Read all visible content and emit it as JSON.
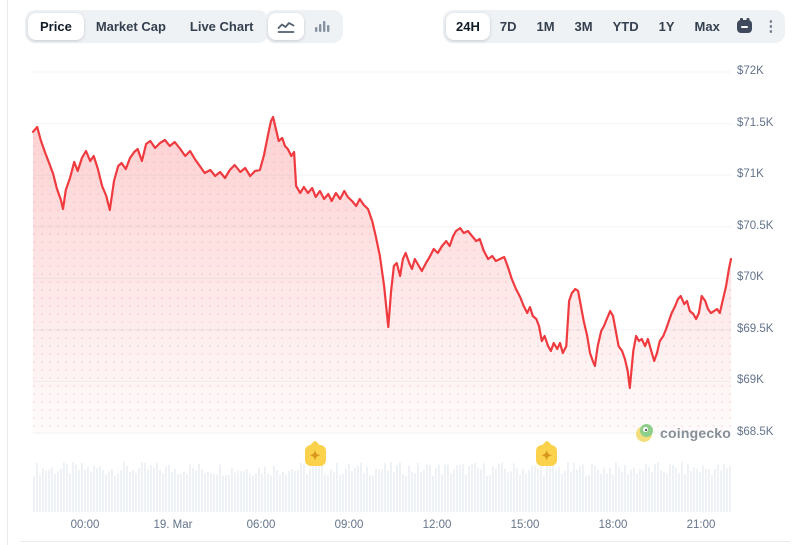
{
  "header": {
    "view_tabs": [
      {
        "label": "Price",
        "selected": true
      },
      {
        "label": "Market Cap",
        "selected": false
      },
      {
        "label": "Live Chart",
        "selected": false
      }
    ],
    "chart_type_toggle": [
      {
        "name": "line-chart",
        "selected": true
      },
      {
        "name": "bar-chart",
        "selected": false
      }
    ],
    "ranges": [
      {
        "label": "24H",
        "selected": true
      },
      {
        "label": "7D",
        "selected": false
      },
      {
        "label": "1M",
        "selected": false
      },
      {
        "label": "3M",
        "selected": false
      },
      {
        "label": "YTD",
        "selected": false
      },
      {
        "label": "1Y",
        "selected": false
      },
      {
        "label": "Max",
        "selected": false
      }
    ]
  },
  "icons": {
    "kebab": "⋮",
    "sparkle": "✦"
  },
  "watermark": {
    "text": "coingecko"
  },
  "colors": {
    "line": "#ef3b40",
    "fill_top": "rgba(246,59,64,0.24)",
    "fill_bottom": "rgba(246,59,64,0.02)",
    "dot": "rgba(240,57,62,0.10)",
    "grid": "#f1f3f6",
    "axis_text": "#64748b",
    "volume_bar": "#edf0f4",
    "marker_bg": "#fcd14b",
    "marker_star": "#d6961f",
    "pill_bg": "#eff2f5"
  },
  "chart_data": {
    "type": "area",
    "currency": "USD",
    "ylim": [
      68500,
      72000
    ],
    "y_ticks": [
      {
        "value": 72000,
        "label": "$72K"
      },
      {
        "value": 71500,
        "label": "$71.5K"
      },
      {
        "value": 71000,
        "label": "$71K"
      },
      {
        "value": 70500,
        "label": "$70.5K"
      },
      {
        "value": 70000,
        "label": "$70K"
      },
      {
        "value": 69500,
        "label": "$69.5K"
      },
      {
        "value": 69000,
        "label": "$69K"
      },
      {
        "value": 68500,
        "label": "$68.5K"
      }
    ],
    "x_ticks": [
      {
        "t": 0.0745,
        "label": "00:00"
      },
      {
        "t": 0.2006,
        "label": "19. Mar"
      },
      {
        "t": 0.3266,
        "label": "06:00"
      },
      {
        "t": 0.4527,
        "label": "09:00"
      },
      {
        "t": 0.5788,
        "label": "12:00"
      },
      {
        "t": 0.7049,
        "label": "15:00"
      },
      {
        "t": 0.8309,
        "label": "18:00"
      },
      {
        "t": 0.957,
        "label": "21:00"
      }
    ],
    "markers": [
      {
        "t": 0.404
      },
      {
        "t": 0.736
      }
    ],
    "series": [
      [
        0,
        71420
      ],
      [
        0.006,
        71467
      ],
      [
        0.011,
        71341
      ],
      [
        0.017,
        71224
      ],
      [
        0.023,
        71118
      ],
      [
        0.029,
        71011
      ],
      [
        0.034,
        70875
      ],
      [
        0.04,
        70759
      ],
      [
        0.043,
        70672
      ],
      [
        0.047,
        70856
      ],
      [
        0.053,
        70972
      ],
      [
        0.059,
        71127
      ],
      [
        0.064,
        71040
      ],
      [
        0.07,
        71166
      ],
      [
        0.076,
        71234
      ],
      [
        0.082,
        71137
      ],
      [
        0.087,
        71186
      ],
      [
        0.093,
        71059
      ],
      [
        0.099,
        70895
      ],
      [
        0.105,
        70798
      ],
      [
        0.11,
        70662
      ],
      [
        0.116,
        70943
      ],
      [
        0.122,
        71089
      ],
      [
        0.127,
        71118
      ],
      [
        0.133,
        71059
      ],
      [
        0.139,
        71166
      ],
      [
        0.145,
        71224
      ],
      [
        0.15,
        71253
      ],
      [
        0.156,
        71137
      ],
      [
        0.162,
        71302
      ],
      [
        0.168,
        71331
      ],
      [
        0.175,
        71263
      ],
      [
        0.182,
        71312
      ],
      [
        0.189,
        71341
      ],
      [
        0.196,
        71283
      ],
      [
        0.203,
        71321
      ],
      [
        0.211,
        71253
      ],
      [
        0.218,
        71186
      ],
      [
        0.225,
        71234
      ],
      [
        0.232,
        71156
      ],
      [
        0.239,
        71089
      ],
      [
        0.246,
        71021
      ],
      [
        0.254,
        71050
      ],
      [
        0.261,
        70992
      ],
      [
        0.268,
        71030
      ],
      [
        0.275,
        70972
      ],
      [
        0.282,
        71050
      ],
      [
        0.289,
        71098
      ],
      [
        0.297,
        71030
      ],
      [
        0.304,
        71069
      ],
      [
        0.311,
        70992
      ],
      [
        0.318,
        71040
      ],
      [
        0.325,
        71050
      ],
      [
        0.331,
        71195
      ],
      [
        0.337,
        71399
      ],
      [
        0.341,
        71525
      ],
      [
        0.344,
        71564
      ],
      [
        0.348,
        71447
      ],
      [
        0.352,
        71331
      ],
      [
        0.357,
        71360
      ],
      [
        0.361,
        71283
      ],
      [
        0.365,
        71253
      ],
      [
        0.37,
        71186
      ],
      [
        0.374,
        71224
      ],
      [
        0.377,
        70895
      ],
      [
        0.383,
        70827
      ],
      [
        0.388,
        70885
      ],
      [
        0.394,
        70827
      ],
      [
        0.4,
        70875
      ],
      [
        0.405,
        70788
      ],
      [
        0.411,
        70846
      ],
      [
        0.417,
        70769
      ],
      [
        0.423,
        70817
      ],
      [
        0.428,
        70749
      ],
      [
        0.434,
        70827
      ],
      [
        0.44,
        70769
      ],
      [
        0.446,
        70846
      ],
      [
        0.451,
        70788
      ],
      [
        0.457,
        70749
      ],
      [
        0.463,
        70701
      ],
      [
        0.468,
        70769
      ],
      [
        0.474,
        70710
      ],
      [
        0.48,
        70672
      ],
      [
        0.486,
        70555
      ],
      [
        0.491,
        70410
      ],
      [
        0.497,
        70216
      ],
      [
        0.503,
        69925
      ],
      [
        0.509,
        69528
      ],
      [
        0.513,
        69877
      ],
      [
        0.517,
        70119
      ],
      [
        0.521,
        70148
      ],
      [
        0.526,
        70022
      ],
      [
        0.53,
        70187
      ],
      [
        0.534,
        70245
      ],
      [
        0.539,
        70148
      ],
      [
        0.543,
        70090
      ],
      [
        0.547,
        70187
      ],
      [
        0.552,
        70129
      ],
      [
        0.557,
        70071
      ],
      [
        0.563,
        70148
      ],
      [
        0.569,
        70216
      ],
      [
        0.574,
        70284
      ],
      [
        0.58,
        70245
      ],
      [
        0.586,
        70313
      ],
      [
        0.592,
        70361
      ],
      [
        0.597,
        70313
      ],
      [
        0.602,
        70410
      ],
      [
        0.606,
        70458
      ],
      [
        0.612,
        70487
      ],
      [
        0.617,
        70439
      ],
      [
        0.623,
        70458
      ],
      [
        0.629,
        70410
      ],
      [
        0.635,
        70361
      ],
      [
        0.64,
        70381
      ],
      [
        0.646,
        70264
      ],
      [
        0.652,
        70187
      ],
      [
        0.658,
        70216
      ],
      [
        0.663,
        70168
      ],
      [
        0.669,
        70187
      ],
      [
        0.675,
        70206
      ],
      [
        0.68,
        70119
      ],
      [
        0.686,
        69993
      ],
      [
        0.692,
        69896
      ],
      [
        0.698,
        69818
      ],
      [
        0.703,
        69731
      ],
      [
        0.708,
        69663
      ],
      [
        0.712,
        69721
      ],
      [
        0.716,
        69634
      ],
      [
        0.721,
        69605
      ],
      [
        0.725,
        69537
      ],
      [
        0.729,
        69392
      ],
      [
        0.733,
        69440
      ],
      [
        0.738,
        69343
      ],
      [
        0.742,
        69295
      ],
      [
        0.746,
        69373
      ],
      [
        0.751,
        69314
      ],
      [
        0.755,
        69373
      ],
      [
        0.759,
        69276
      ],
      [
        0.764,
        69343
      ],
      [
        0.768,
        69780
      ],
      [
        0.772,
        69857
      ],
      [
        0.777,
        69896
      ],
      [
        0.781,
        69877
      ],
      [
        0.785,
        69731
      ],
      [
        0.789,
        69586
      ],
      [
        0.794,
        69440
      ],
      [
        0.798,
        69276
      ],
      [
        0.802,
        69198
      ],
      [
        0.805,
        69150
      ],
      [
        0.809,
        69343
      ],
      [
        0.814,
        69489
      ],
      [
        0.818,
        69537
      ],
      [
        0.822,
        69605
      ],
      [
        0.827,
        69683
      ],
      [
        0.831,
        69634
      ],
      [
        0.835,
        69489
      ],
      [
        0.839,
        69343
      ],
      [
        0.844,
        69295
      ],
      [
        0.848,
        69217
      ],
      [
        0.852,
        69101
      ],
      [
        0.855,
        68936
      ],
      [
        0.86,
        69295
      ],
      [
        0.864,
        69440
      ],
      [
        0.868,
        69392
      ],
      [
        0.872,
        69411
      ],
      [
        0.877,
        69343
      ],
      [
        0.881,
        69411
      ],
      [
        0.885,
        69314
      ],
      [
        0.89,
        69198
      ],
      [
        0.894,
        69276
      ],
      [
        0.898,
        69392
      ],
      [
        0.903,
        69440
      ],
      [
        0.907,
        69508
      ],
      [
        0.911,
        69586
      ],
      [
        0.915,
        69663
      ],
      [
        0.92,
        69731
      ],
      [
        0.924,
        69799
      ],
      [
        0.928,
        69828
      ],
      [
        0.933,
        69750
      ],
      [
        0.937,
        69780
      ],
      [
        0.941,
        69683
      ],
      [
        0.946,
        69654
      ],
      [
        0.95,
        69605
      ],
      [
        0.954,
        69663
      ],
      [
        0.958,
        69828
      ],
      [
        0.963,
        69780
      ],
      [
        0.967,
        69702
      ],
      [
        0.971,
        69663
      ],
      [
        0.976,
        69683
      ],
      [
        0.98,
        69702
      ],
      [
        0.984,
        69663
      ],
      [
        0.988,
        69780
      ],
      [
        0.993,
        69925
      ],
      [
        0.997,
        70090
      ],
      [
        1,
        70187
      ]
    ]
  }
}
